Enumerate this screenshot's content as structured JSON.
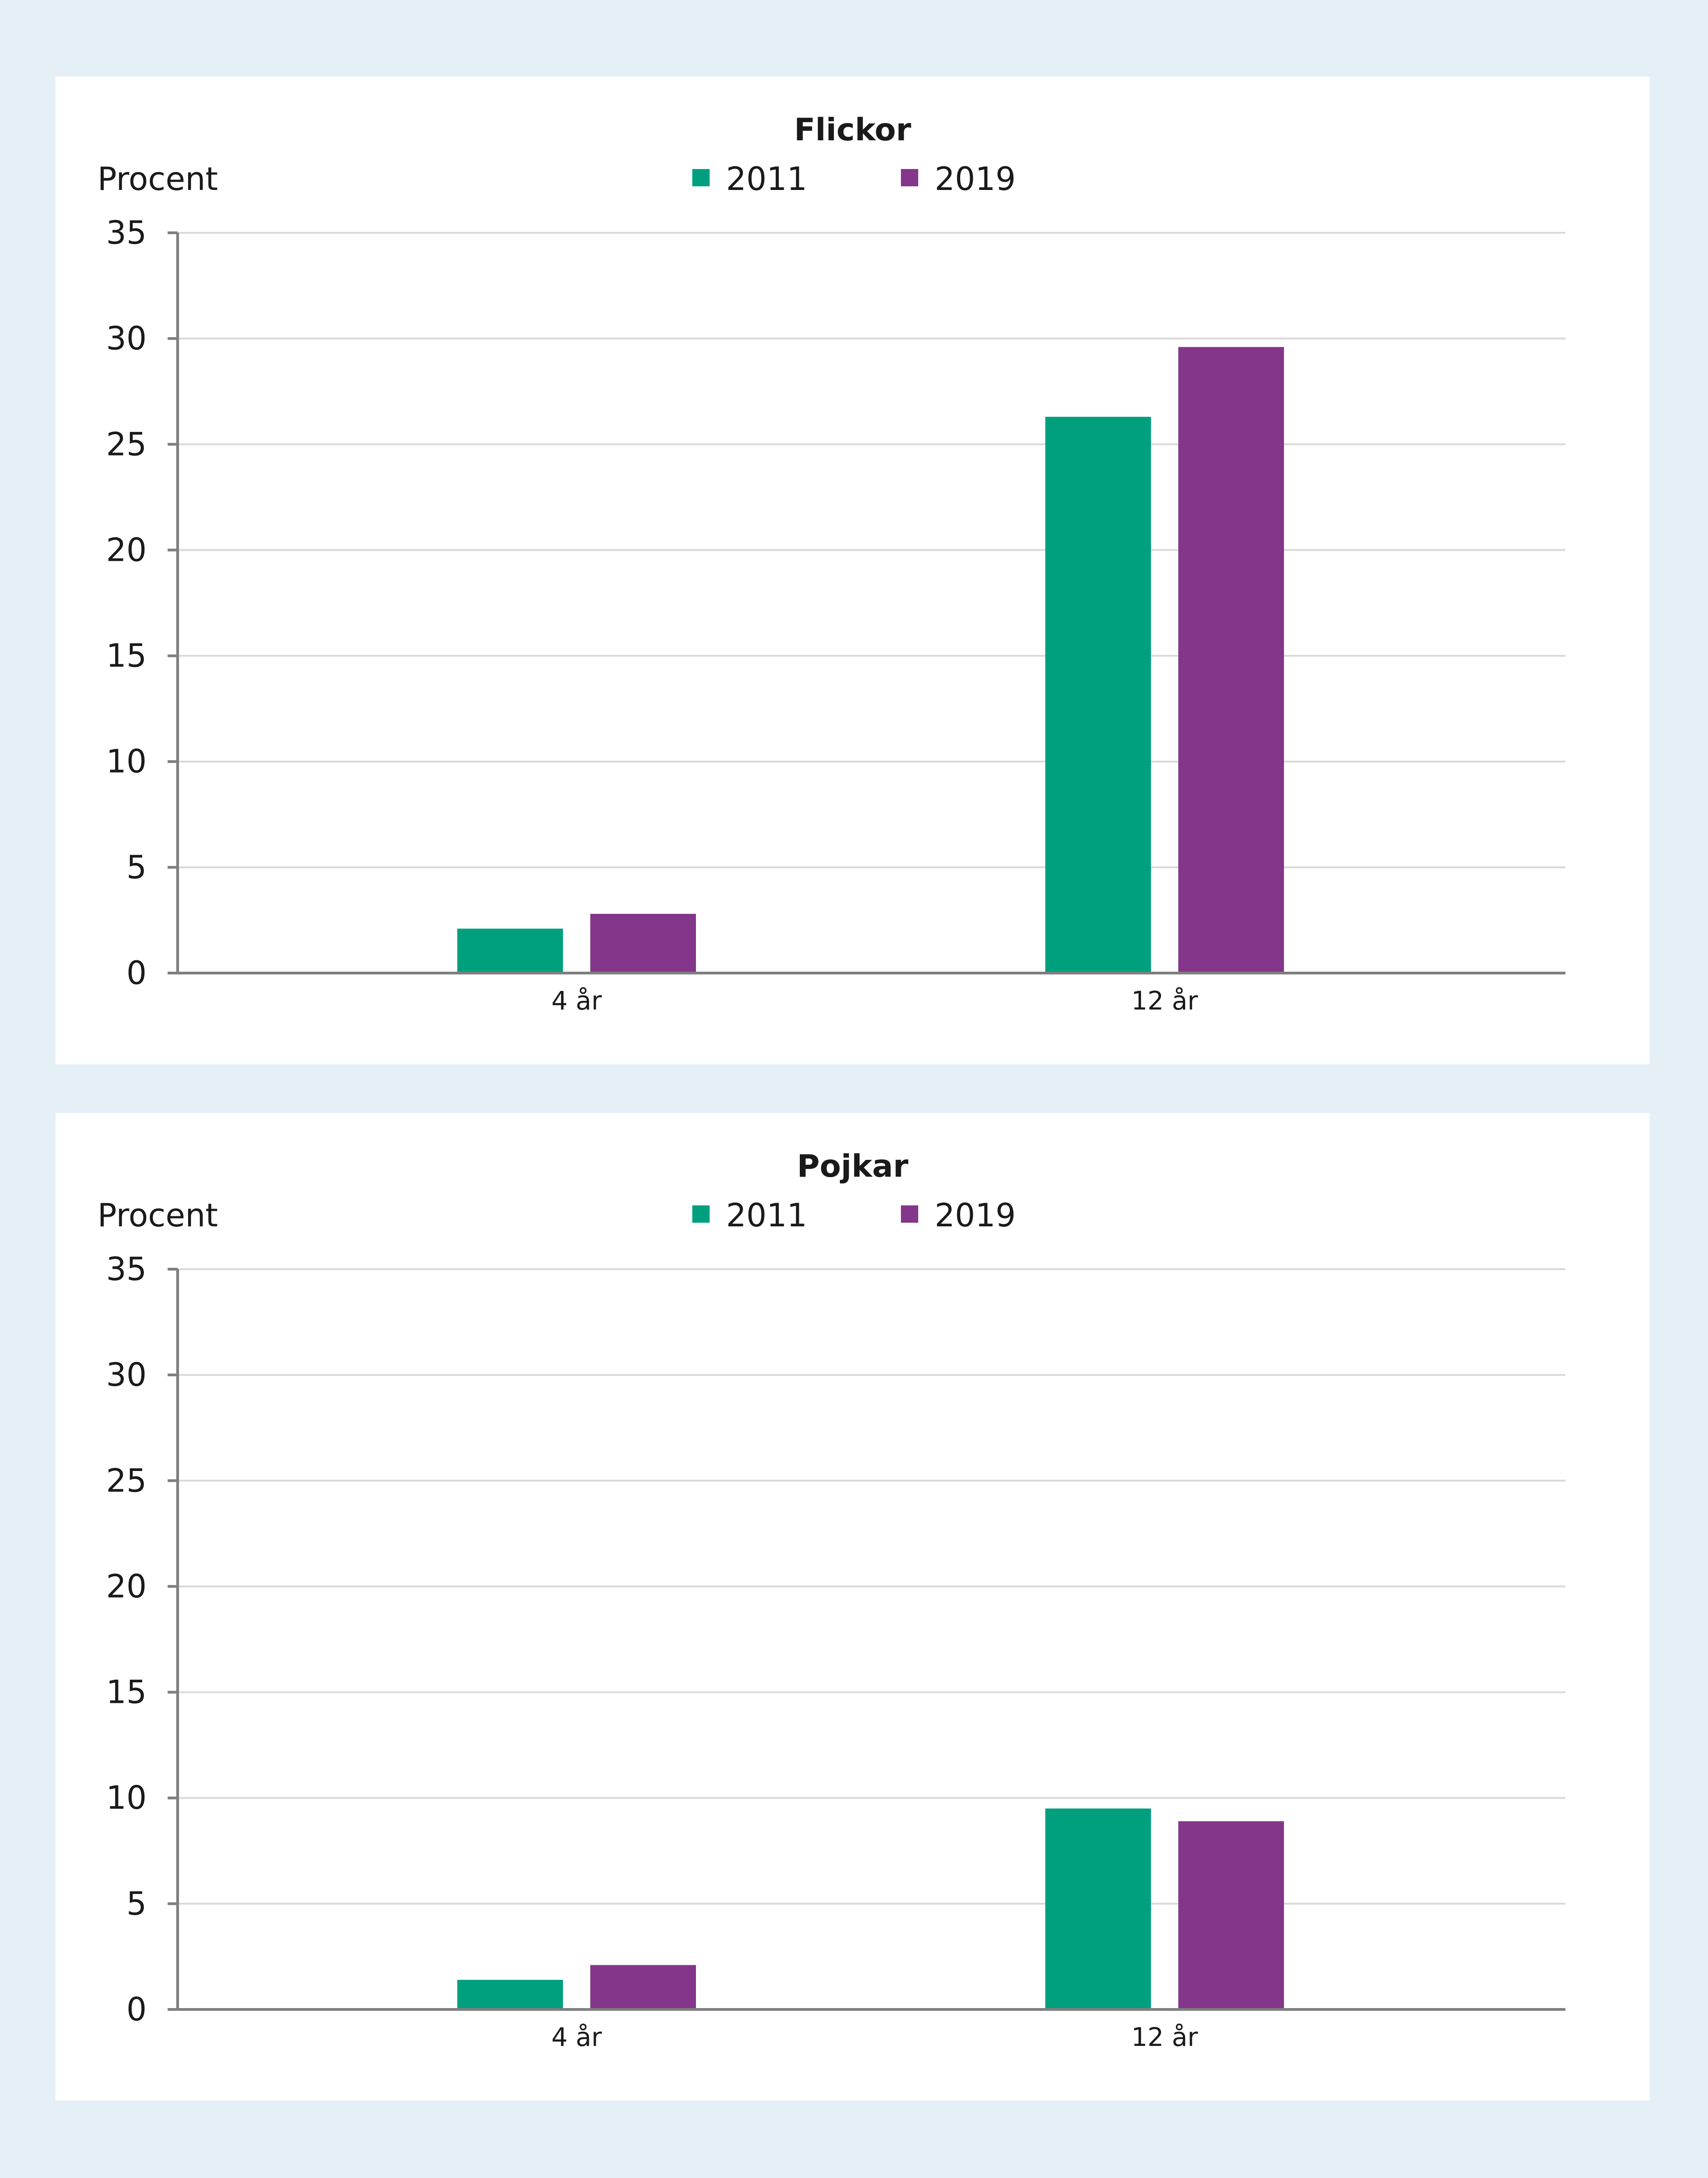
{
  "colors": {
    "background": "#e4eff6",
    "panel": "#ffffff",
    "series_2011": "#00a07e",
    "series_2019": "#84368a",
    "axis": "#7f7f7f",
    "grid": "#d9d9d9",
    "text": "#1a1a1a"
  },
  "chart_data": [
    {
      "type": "bar",
      "title": "Flickor",
      "ylabel": "Procent",
      "xlabel": "",
      "categories": [
        "4 år",
        "12 år"
      ],
      "series": [
        {
          "name": "2011",
          "values": [
            2.1,
            26.3
          ]
        },
        {
          "name": "2019",
          "values": [
            2.8,
            29.6
          ]
        }
      ],
      "ylim": [
        0,
        35
      ],
      "yticks": [
        0,
        5,
        10,
        15,
        20,
        25,
        30,
        35
      ],
      "grid": true,
      "legend": "top-center"
    },
    {
      "type": "bar",
      "title": "Pojkar",
      "ylabel": "Procent",
      "xlabel": "",
      "categories": [
        "4 år",
        "12 år"
      ],
      "series": [
        {
          "name": "2011",
          "values": [
            1.4,
            9.5
          ]
        },
        {
          "name": "2019",
          "values": [
            2.1,
            8.9
          ]
        }
      ],
      "ylim": [
        0,
        35
      ],
      "yticks": [
        0,
        5,
        10,
        15,
        20,
        25,
        30,
        35
      ],
      "grid": true,
      "legend": "top-center"
    }
  ]
}
